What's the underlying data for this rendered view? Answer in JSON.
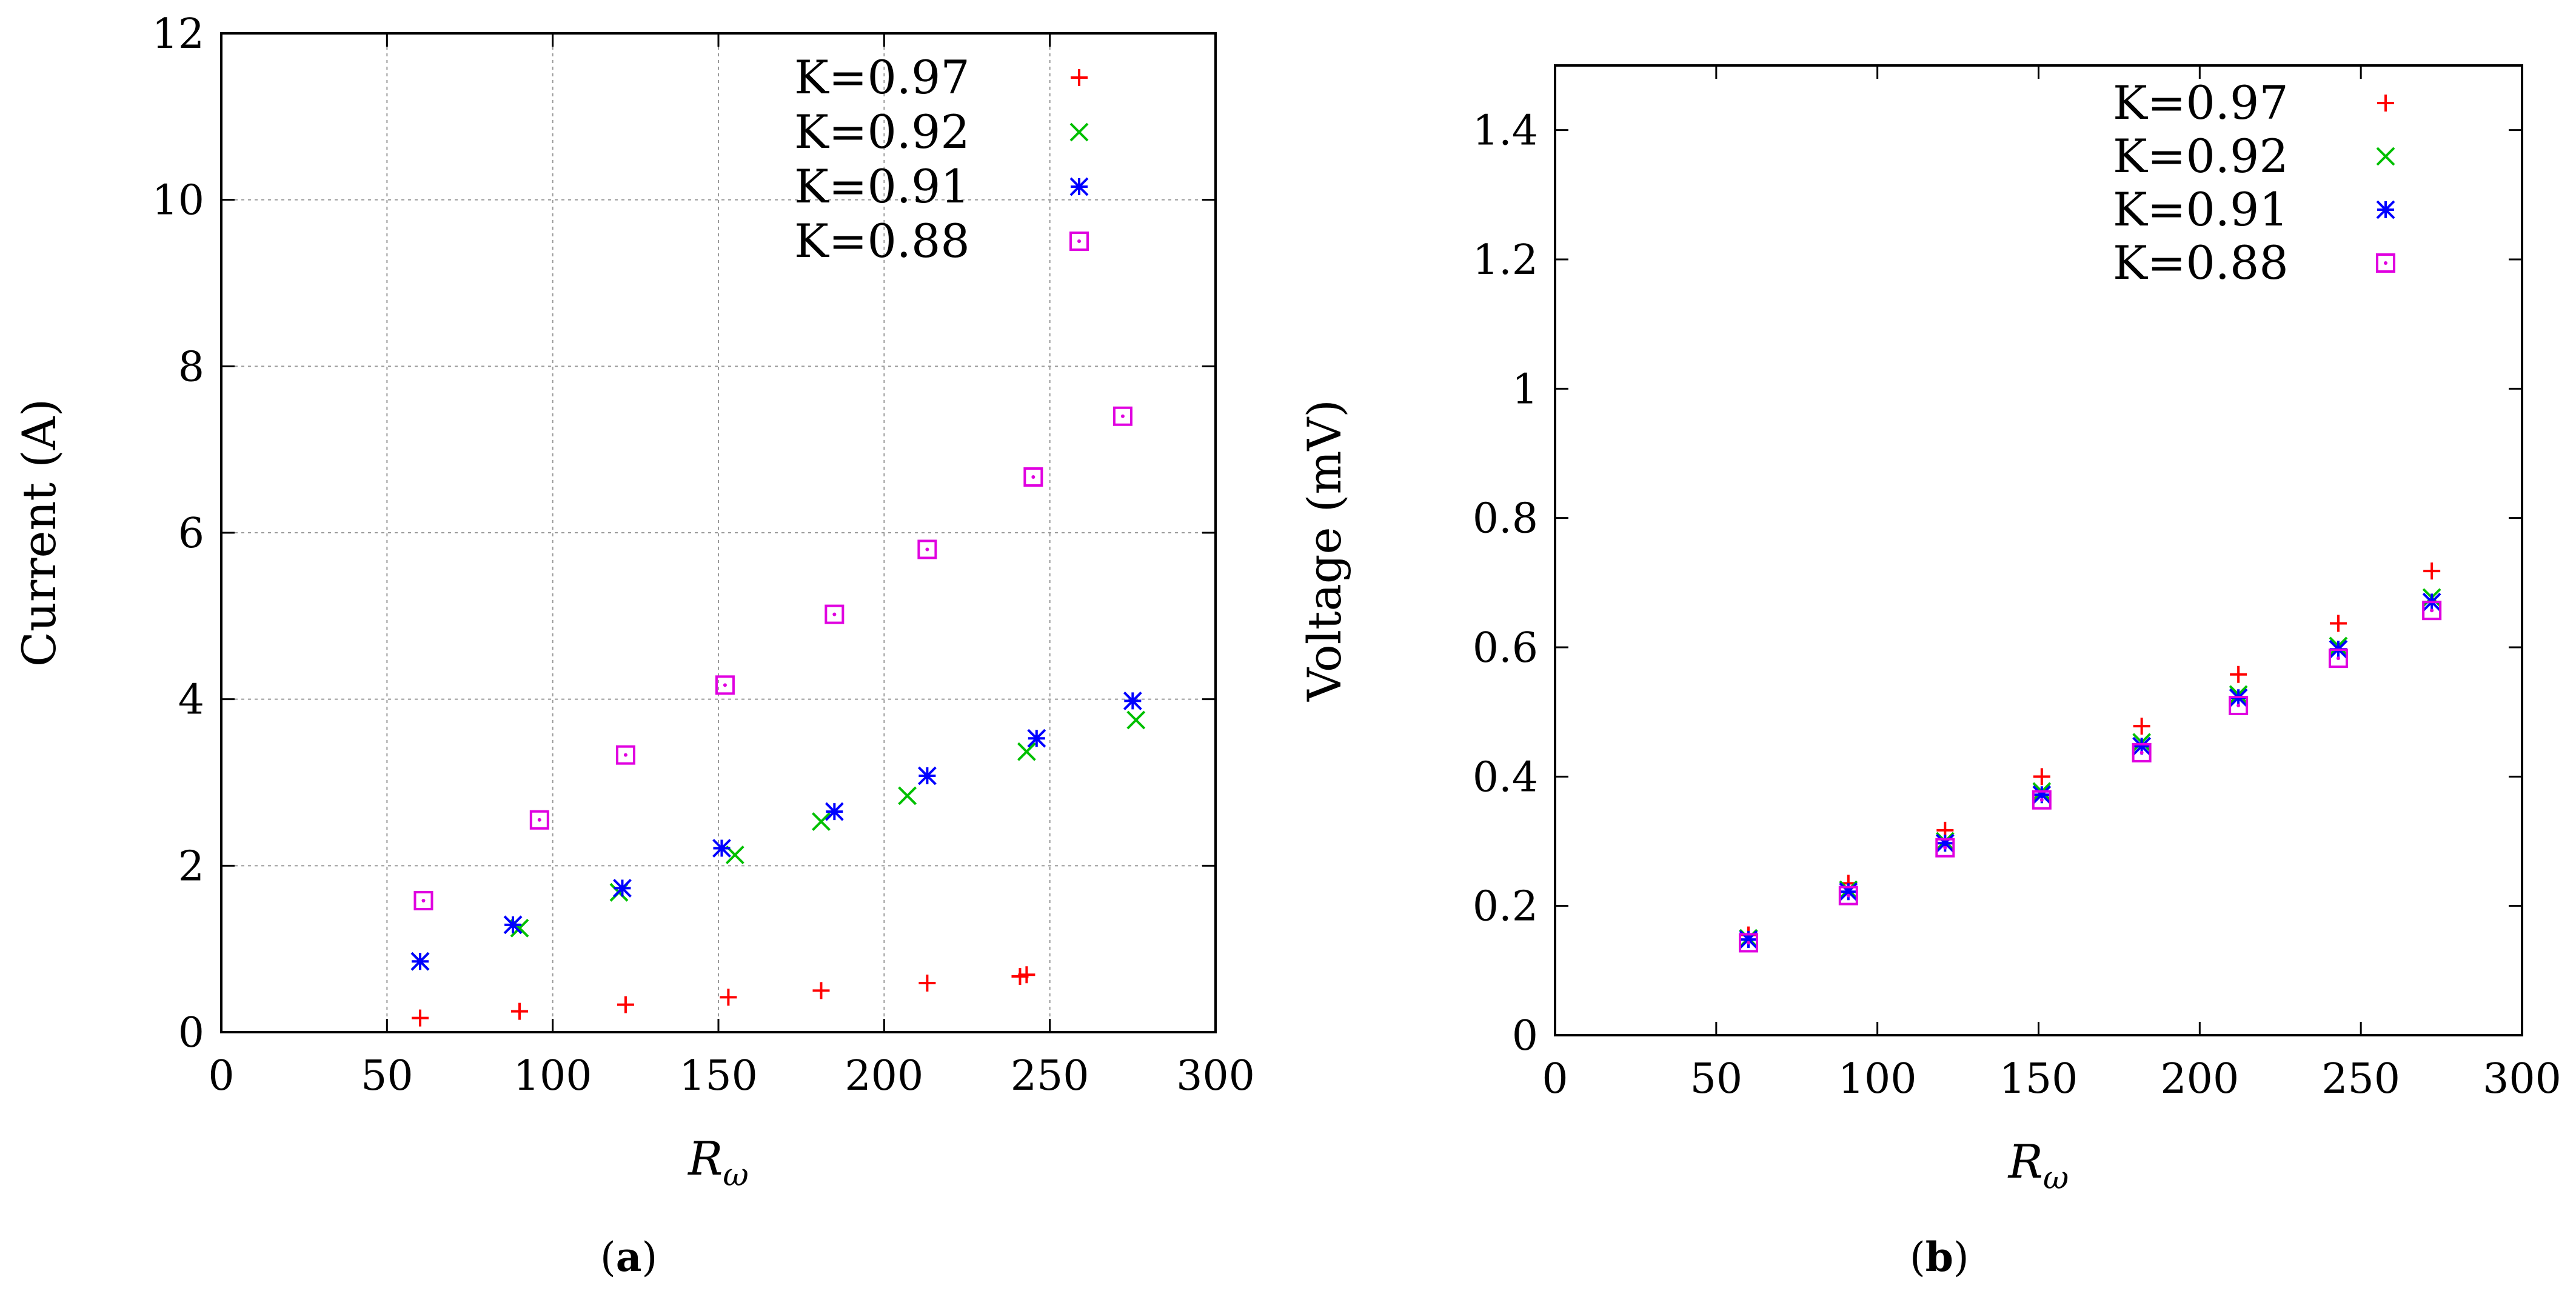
{
  "chart_data": [
    {
      "type": "scatter",
      "panel": "a",
      "caption": "a",
      "title": "",
      "xlabel_main": "R",
      "xlabel_sub": "ω",
      "ylabel": "Current (A)",
      "xlim": [
        0,
        300
      ],
      "ylim": [
        0,
        12
      ],
      "xticks": [
        0,
        50,
        100,
        150,
        200,
        250,
        300
      ],
      "yticks": [
        0,
        2,
        4,
        6,
        8,
        10,
        12
      ],
      "ytick_labels": [
        "0",
        "2",
        "4",
        "6",
        "8",
        "10",
        "12"
      ],
      "grid": true,
      "legend_position": "top-right",
      "series": [
        {
          "name": "K=0.97",
          "marker": "plus",
          "color": "#ff0000",
          "x": [
            60,
            90,
            122,
            153,
            181,
            213,
            241,
            243
          ],
          "y": [
            0.17,
            0.25,
            0.33,
            0.42,
            0.5,
            0.59,
            0.67,
            0.69
          ]
        },
        {
          "name": "K=0.92",
          "marker": "cross",
          "color": "#00c000",
          "x": [
            60,
            90,
            120,
            155,
            181,
            207,
            243,
            276
          ],
          "y": [
            0.85,
            1.25,
            1.68,
            2.13,
            2.53,
            2.84,
            3.37,
            3.75
          ]
        },
        {
          "name": "K=0.91",
          "marker": "star",
          "color": "#0000ff",
          "x": [
            60,
            88,
            121,
            151,
            185,
            213,
            246,
            275
          ],
          "y": [
            0.85,
            1.29,
            1.73,
            2.21,
            2.65,
            3.08,
            3.53,
            3.98
          ]
        },
        {
          "name": "K=0.88",
          "marker": "square",
          "color": "#e000e0",
          "x": [
            61,
            96,
            122,
            152,
            185,
            213,
            245,
            272
          ],
          "y": [
            1.58,
            2.55,
            3.33,
            4.17,
            5.02,
            5.8,
            6.67,
            7.4
          ]
        }
      ]
    },
    {
      "type": "scatter",
      "panel": "b",
      "caption": "b",
      "title": "",
      "xlabel_main": "R",
      "xlabel_sub": "ω",
      "ylabel": "Voltage (mV)",
      "xlim": [
        0,
        300
      ],
      "ylim": [
        0,
        1.5
      ],
      "xticks": [
        0,
        50,
        100,
        150,
        200,
        250,
        300
      ],
      "yticks": [
        0,
        0.2,
        0.4,
        0.6,
        0.8,
        1,
        1.2,
        1.4
      ],
      "ytick_labels": [
        "0",
        "0.2",
        "0.4",
        "0.6",
        "0.8",
        "1",
        "1.2",
        "1.4"
      ],
      "grid": false,
      "legend_position": "top-right",
      "series": [
        {
          "name": "K=0.97",
          "marker": "plus",
          "color": "#ff0000",
          "x": [
            60,
            91,
            121,
            151,
            182,
            212,
            243,
            272
          ],
          "y": [
            0.155,
            0.235,
            0.317,
            0.4,
            0.478,
            0.558,
            0.637,
            0.718
          ]
        },
        {
          "name": "K=0.92",
          "marker": "cross",
          "color": "#00c000",
          "x": [
            60,
            91,
            121,
            151,
            182,
            212,
            243,
            272
          ],
          "y": [
            0.15,
            0.225,
            0.3,
            0.377,
            0.453,
            0.527,
            0.602,
            0.677
          ]
        },
        {
          "name": "K=0.91",
          "marker": "star",
          "color": "#0000ff",
          "x": [
            60,
            91,
            121,
            151,
            182,
            212,
            243,
            272
          ],
          "y": [
            0.148,
            0.222,
            0.297,
            0.372,
            0.447,
            0.522,
            0.597,
            0.67
          ]
        },
        {
          "name": "K=0.88",
          "marker": "square",
          "color": "#e000e0",
          "x": [
            60,
            91,
            121,
            151,
            182,
            212,
            243,
            272
          ],
          "y": [
            0.143,
            0.216,
            0.29,
            0.364,
            0.437,
            0.51,
            0.583,
            0.657
          ]
        }
      ]
    }
  ]
}
